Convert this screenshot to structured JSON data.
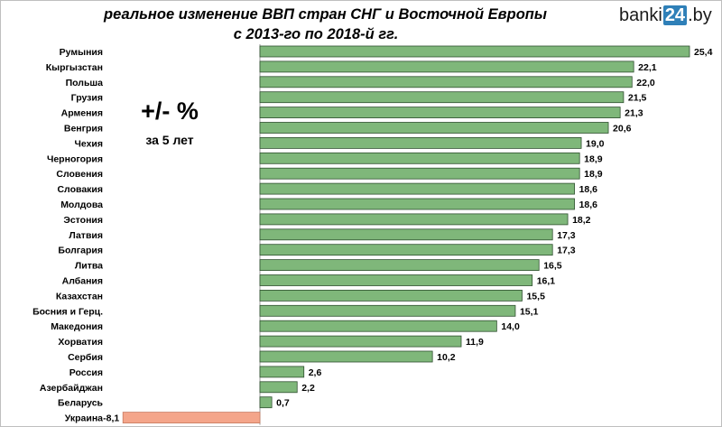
{
  "header": {
    "title_line1": "реальное изменение ВВП стран СНГ и Восточной Европы",
    "title_line2": "с 2013-го по 2018-й гг.",
    "logo_left": "banki",
    "logo_box": "24",
    "logo_right": ".by"
  },
  "unit": {
    "main": "+/- %",
    "sub": "за 5 лет"
  },
  "colors": {
    "positive": "#7fb77a",
    "negative": "#f4a58a",
    "bar_border": "#2f4f2f",
    "axis": "#9a9a9a"
  },
  "chart_data": {
    "type": "bar",
    "orientation": "horizontal",
    "categories": [
      "Румыния",
      "Кыргызстан",
      "Польша",
      "Грузия",
      "Армения",
      "Венгрия",
      "Чехия",
      "Черногория",
      "Словения",
      "Словакия",
      "Молдова",
      "Эстония",
      "Латвия",
      "Болгария",
      "Литва",
      "Албания",
      "Казахстан",
      "Босния и Герц.",
      "Македония",
      "Хорватия",
      "Сербия",
      "Россия",
      "Азербайджан",
      "Беларусь",
      "Украина"
    ],
    "values": [
      25.4,
      22.1,
      22.0,
      21.5,
      21.3,
      20.6,
      19.0,
      18.9,
      18.9,
      18.6,
      18.6,
      18.2,
      17.3,
      17.3,
      16.5,
      16.1,
      15.5,
      15.1,
      14.0,
      11.9,
      10.2,
      2.6,
      2.2,
      0.7,
      -8.1
    ],
    "labels": [
      "25,4",
      "22,1",
      "22,0",
      "21,5",
      "21,3",
      "20,6",
      "19,0",
      "18,9",
      "18,9",
      "18,6",
      "18,6",
      "18,2",
      "17,3",
      "17,3",
      "16,5",
      "16,1",
      "15,5",
      "15,1",
      "14,0",
      "11,9",
      "10,2",
      "2,6",
      "2,2",
      "0,7",
      "-8,1"
    ],
    "xlim": [
      -8.1,
      25.4
    ],
    "grid": false,
    "legend": "none"
  }
}
